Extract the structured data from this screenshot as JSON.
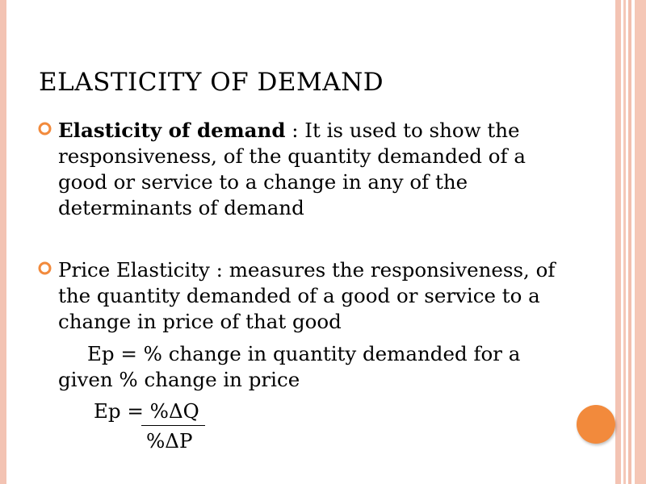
{
  "slide": {
    "title": "ELASTICITY OF DEMAND",
    "bullet1": {
      "term": "Elasticity of demand",
      "text": " : It is used to show the responsiveness, of the quantity demanded of a good or service to a change in any of the determinants of demand"
    },
    "bullet2": {
      "text": "Price Elasticity : measures the responsiveness, of the quantity demanded of a good or service to a change in price of that good"
    },
    "definition_line1": "Ep = % change in quantity demanded for a",
    "definition_line2": "given % change in price",
    "formula_lhs": "Ep = ",
    "formula_numerator": "%ΔQ",
    "formula_denominator": "%ΔP"
  },
  "colors": {
    "accent_stripe": "#f3c3b3",
    "bullet_ring": "#f28a3c",
    "circle": "#f28a3c"
  },
  "icons": {
    "bullet": "hollow-circle-icon",
    "corner": "orange-circle"
  }
}
